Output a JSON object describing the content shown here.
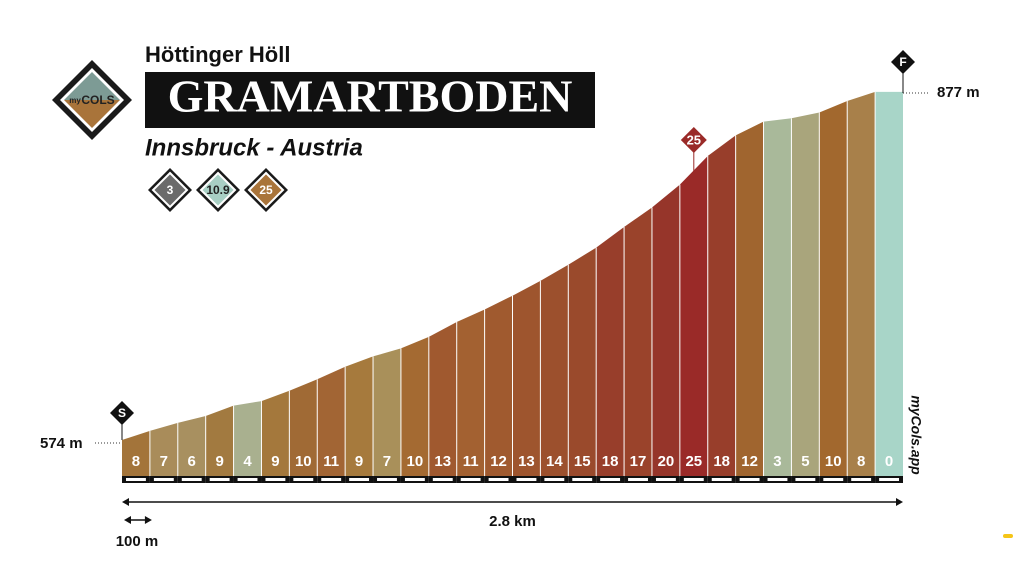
{
  "header": {
    "subtitle": "Höttinger Höll",
    "title": "GRAMARTBODEN",
    "location": "Innsbruck - Austria",
    "badges": [
      3,
      10.9,
      25
    ],
    "logo": {
      "small": "my",
      "big": "COLS"
    }
  },
  "chart_data": {
    "type": "climb-profile",
    "segment_length": {
      "value": 100,
      "label": "100 m"
    },
    "total_distance": {
      "value": 2.8,
      "label": "2.8 km"
    },
    "start": {
      "value": 574,
      "label": "574 m",
      "marker": "S"
    },
    "finish": {
      "value": 877,
      "label": "877 m",
      "marker": "F"
    },
    "values": [
      8,
      7,
      6,
      9,
      4,
      9,
      10,
      11,
      9,
      7,
      10,
      13,
      11,
      12,
      13,
      14,
      15,
      18,
      17,
      20,
      25,
      18,
      12,
      3,
      5,
      10,
      8,
      0
    ],
    "colors": [
      "#a3743a",
      "#a98c5a",
      "#a89060",
      "#a27a40",
      "#a9b08f",
      "#a4783c",
      "#a06a35",
      "#a26534",
      "#a67a3d",
      "#a9905a",
      "#a46a32",
      "#a0592f",
      "#a36131",
      "#a05a2f",
      "#9e552e",
      "#9c502d",
      "#9a4a2c",
      "#983e2b",
      "#9a432b",
      "#96352a",
      "#9a2a28",
      "#983e2b",
      "#a0652f",
      "#a9b99a",
      "#a9a57c",
      "#a2682e",
      "#a8804a",
      "#a8d5c8"
    ],
    "watermark": "myCols.app"
  }
}
